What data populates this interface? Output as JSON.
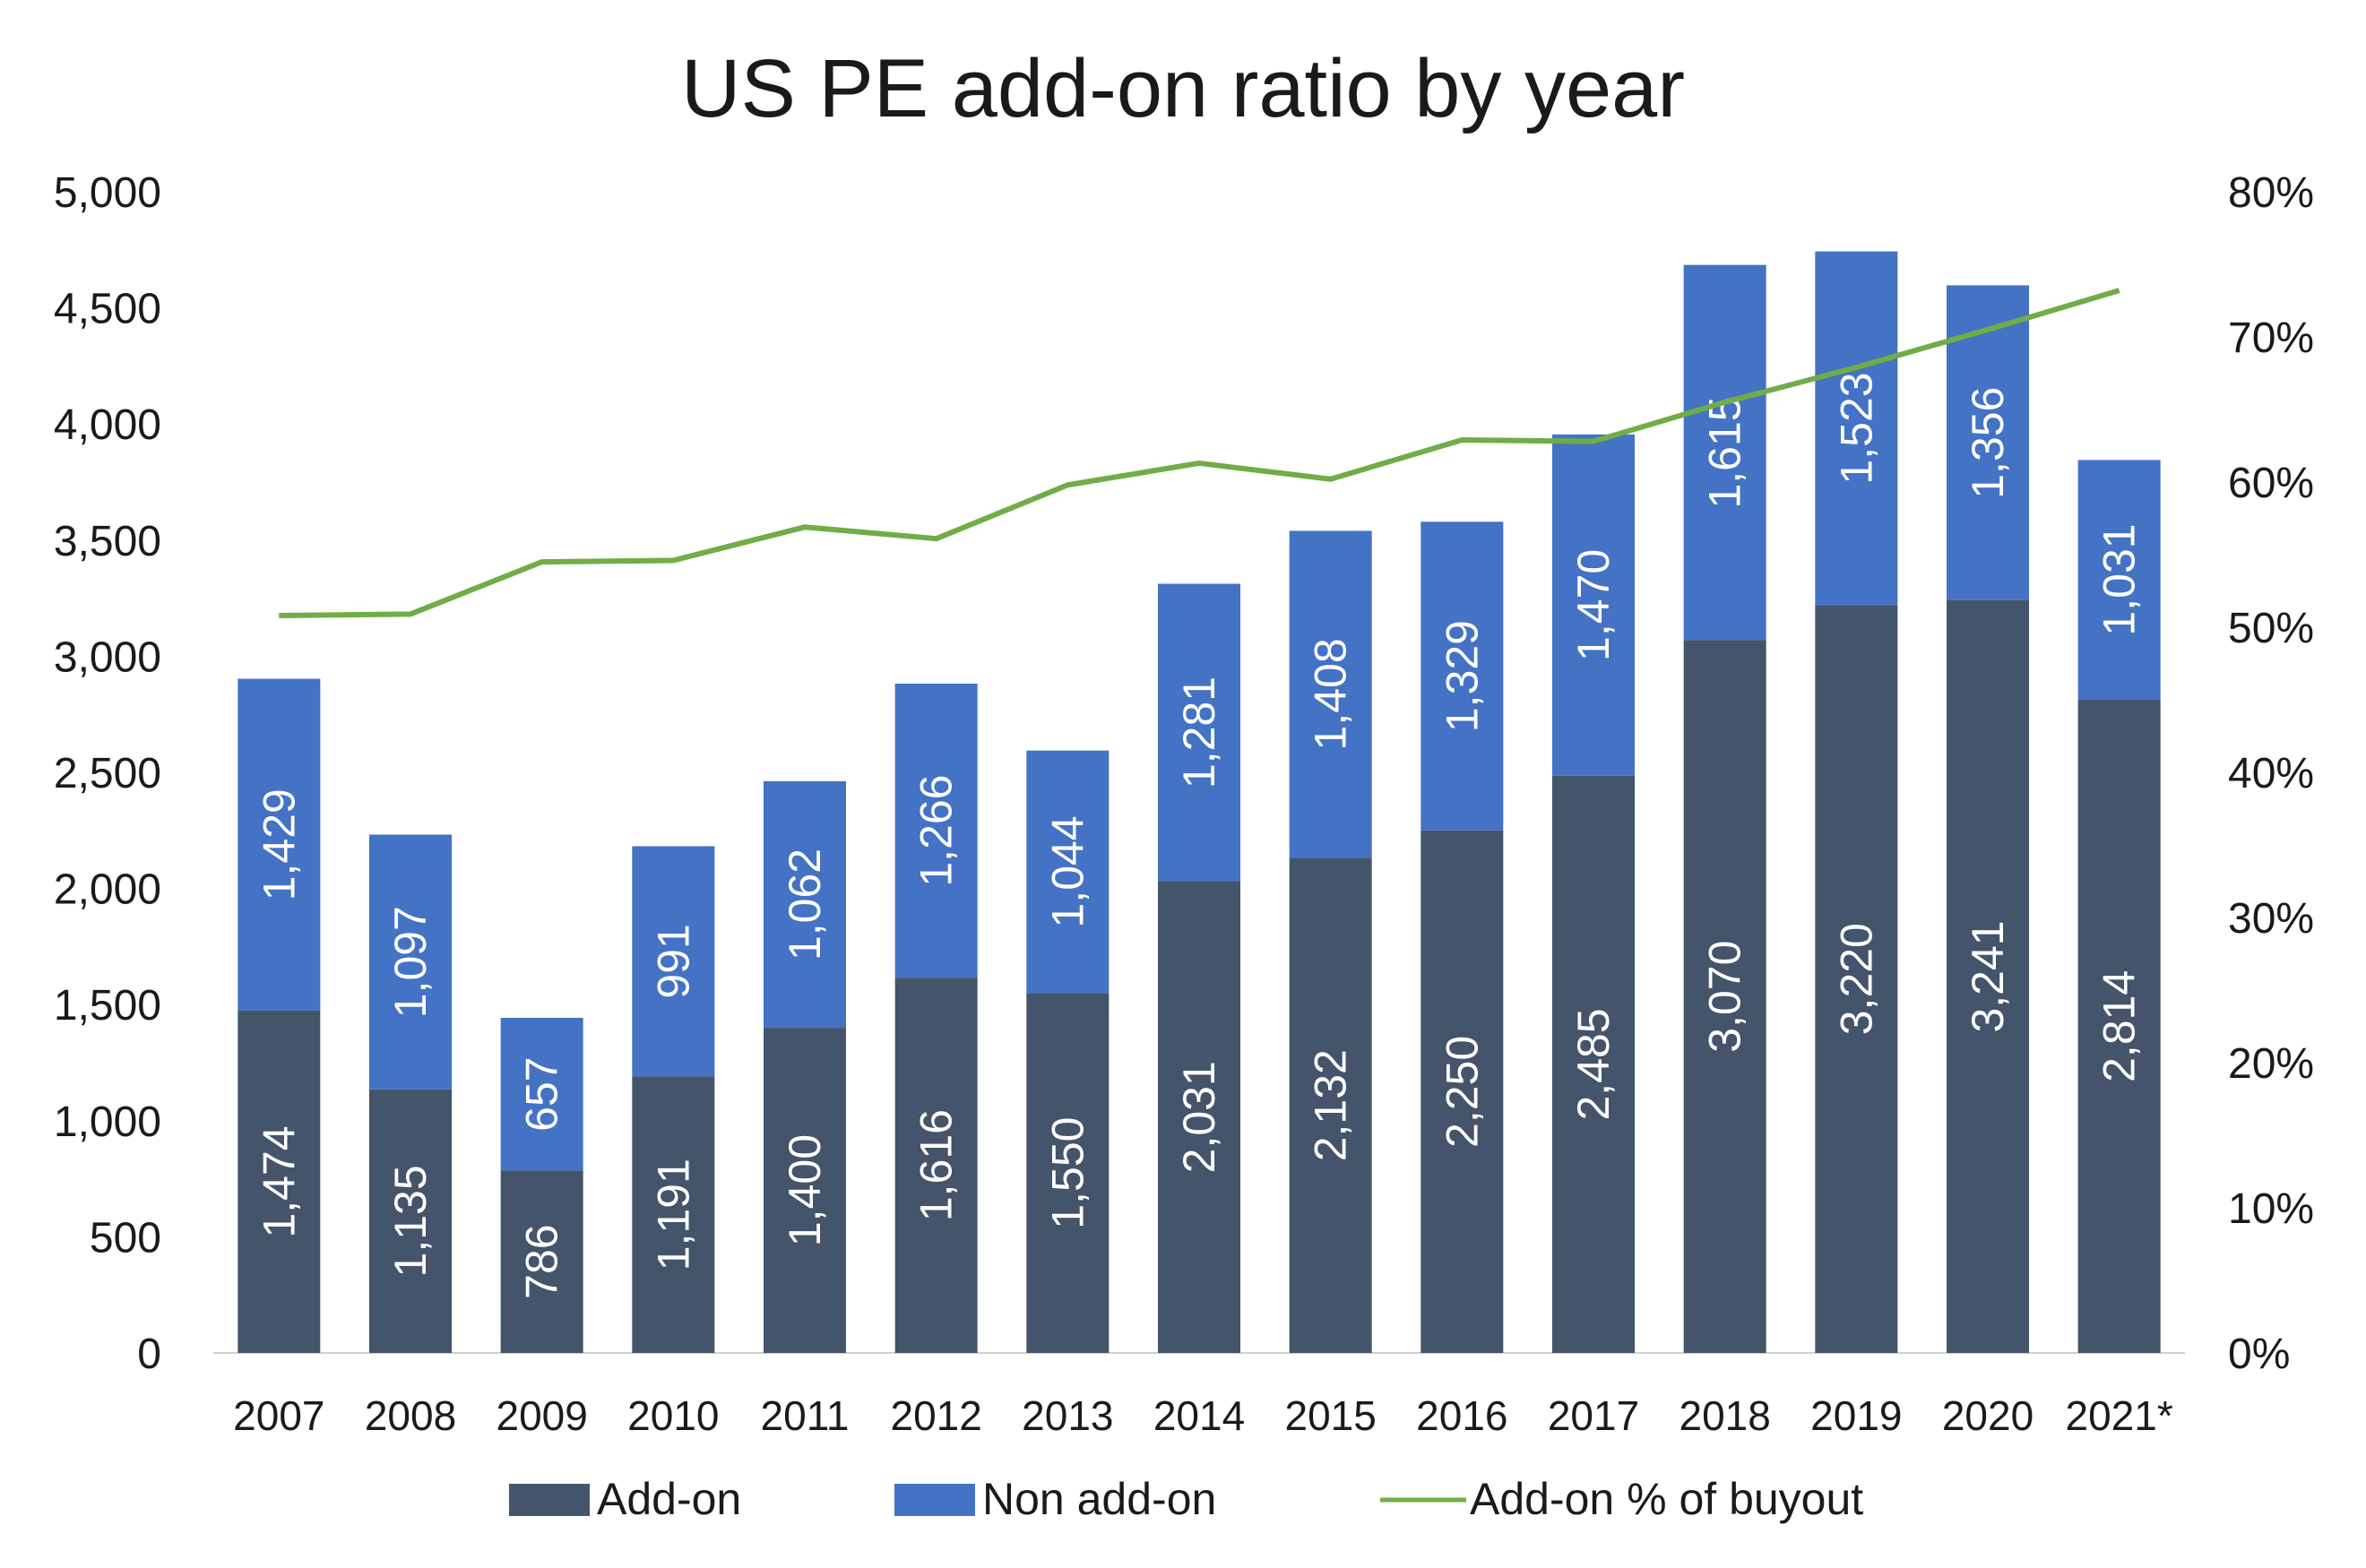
{
  "chart_data": {
    "type": "bar",
    "stacked": true,
    "title": "US PE add-on ratio by year",
    "categories": [
      "2007",
      "2008",
      "2009",
      "2010",
      "2011",
      "2012",
      "2013",
      "2014",
      "2015",
      "2016",
      "2017",
      "2018",
      "2019",
      "2020",
      "2021*"
    ],
    "series": [
      {
        "name": "Add-on",
        "type": "bar",
        "axis": "left",
        "color": "#44546a",
        "values": [
          1474,
          1135,
          786,
          1191,
          1400,
          1616,
          1550,
          2031,
          2132,
          2250,
          2485,
          3070,
          3220,
          3241,
          2814
        ],
        "labels": [
          "1,474",
          "1,135",
          "786",
          "1,191",
          "1,400",
          "1,616",
          "1,550",
          "2,031",
          "2,132",
          "2,250",
          "2,485",
          "3,070",
          "3,220",
          "3,241",
          "2,814"
        ]
      },
      {
        "name": "Non add-on",
        "type": "bar",
        "axis": "left",
        "color": "#4472c4",
        "values": [
          1429,
          1097,
          657,
          991,
          1062,
          1266,
          1044,
          1281,
          1408,
          1329,
          1470,
          1615,
          1523,
          1356,
          1031
        ],
        "labels": [
          "1,429",
          "1,097",
          "657",
          "991",
          "1,062",
          "1,266",
          "1,044",
          "1,281",
          "1,408",
          "1,329",
          "1,470",
          "1,615",
          "1,523",
          "1,356",
          "1,031"
        ]
      },
      {
        "name": "Add-on % of buyout",
        "type": "line",
        "axis": "right",
        "color": "#70ad47",
        "values": [
          50.8,
          50.9,
          54.5,
          54.6,
          56.9,
          56.1,
          59.8,
          61.3,
          60.2,
          62.9,
          62.8,
          65.5,
          67.9,
          70.5,
          73.2
        ]
      }
    ],
    "y_left": {
      "min": 0,
      "max": 5000,
      "step": 500,
      "ticks": [
        "0",
        "500",
        "1,000",
        "1,500",
        "2,000",
        "2,500",
        "3,000",
        "3,500",
        "4,000",
        "4,500",
        "5,000"
      ]
    },
    "y_right": {
      "min": 0,
      "max": 80,
      "step": 10,
      "ticks": [
        "0%",
        "10%",
        "20%",
        "30%",
        "40%",
        "50%",
        "60%",
        "70%",
        "80%"
      ]
    },
    "grid": false,
    "legend_position": "bottom"
  }
}
